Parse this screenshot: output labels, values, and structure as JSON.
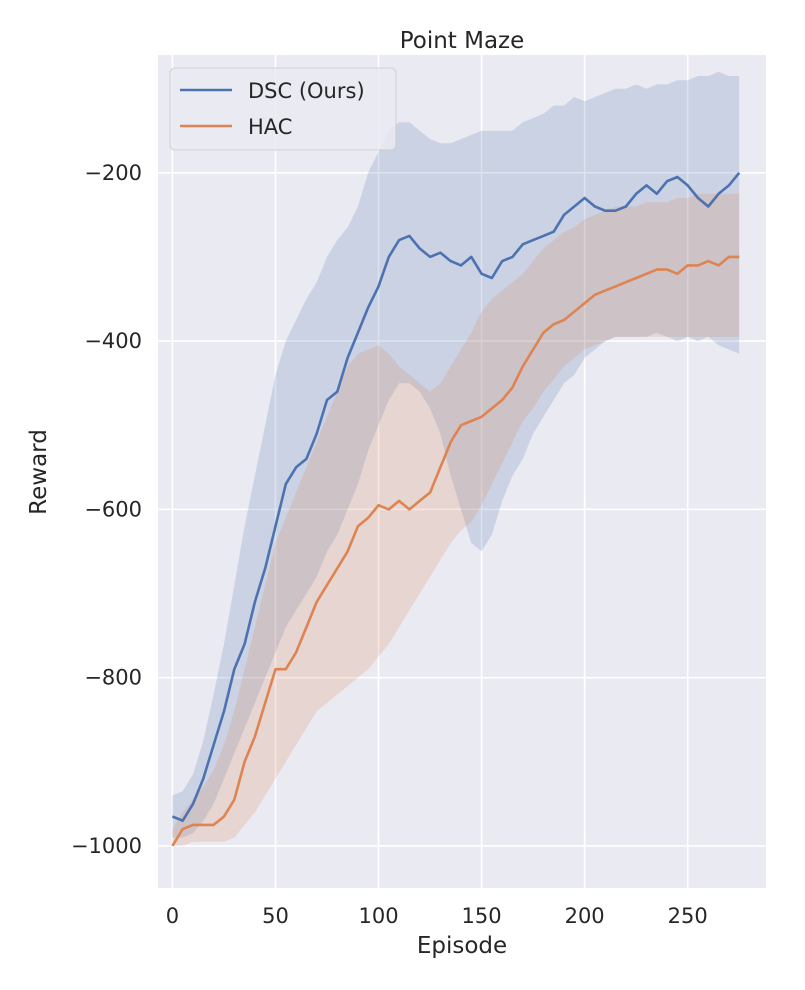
{
  "chart_data": {
    "type": "line",
    "title": "Point Maze",
    "xlabel": "Episode",
    "ylabel": "Reward",
    "xlim": [
      -7,
      288
    ],
    "ylim": [
      -1050,
      -60
    ],
    "xticks": [
      0,
      50,
      100,
      150,
      200,
      250
    ],
    "xtick_labels": [
      "0",
      "50",
      "100",
      "150",
      "200",
      "250"
    ],
    "yticks": [
      -1000,
      -800,
      -600,
      -400,
      -200
    ],
    "ytick_labels": [
      "−1000",
      "−800",
      "−600",
      "−400",
      "−200"
    ],
    "grid": true,
    "background": "#eaeaf2",
    "legend_position": "top-left",
    "band": "shaded region = mean ± spread",
    "series": [
      {
        "name": "DSC (Ours)",
        "color": "#4c72b0",
        "x": [
          0,
          5,
          10,
          15,
          20,
          25,
          30,
          35,
          40,
          45,
          50,
          55,
          60,
          65,
          70,
          75,
          80,
          85,
          90,
          95,
          100,
          105,
          110,
          115,
          120,
          125,
          130,
          135,
          140,
          145,
          150,
          155,
          160,
          165,
          170,
          175,
          180,
          185,
          190,
          195,
          200,
          205,
          210,
          215,
          220,
          225,
          230,
          235,
          240,
          245,
          250,
          255,
          260,
          265,
          270,
          275
        ],
        "mean": [
          -965,
          -970,
          -950,
          -920,
          -880,
          -840,
          -790,
          -760,
          -710,
          -670,
          -620,
          -570,
          -550,
          -540,
          -510,
          -470,
          -460,
          -420,
          -390,
          -360,
          -335,
          -300,
          -280,
          -275,
          -290,
          -300,
          -295,
          -305,
          -310,
          -300,
          -320,
          -325,
          -305,
          -300,
          -285,
          -280,
          -275,
          -270,
          -250,
          -240,
          -230,
          -240,
          -245,
          -245,
          -240,
          -225,
          -215,
          -225,
          -210,
          -205,
          -215,
          -230,
          -240,
          -225,
          -215,
          -200
        ],
        "upper": [
          -940,
          -935,
          -915,
          -875,
          -820,
          -760,
          -690,
          -620,
          -560,
          -500,
          -440,
          -400,
          -375,
          -350,
          -330,
          -300,
          -280,
          -265,
          -240,
          -200,
          -175,
          -150,
          -140,
          -140,
          -150,
          -160,
          -165,
          -165,
          -160,
          -155,
          -150,
          -150,
          -150,
          -150,
          -140,
          -135,
          -130,
          -120,
          -120,
          -110,
          -115,
          -110,
          -105,
          -100,
          -100,
          -95,
          -100,
          -95,
          -95,
          -90,
          -90,
          -85,
          -85,
          -80,
          -85,
          -85
        ],
        "lower": [
          -990,
          -990,
          -985,
          -970,
          -950,
          -920,
          -890,
          -860,
          -830,
          -800,
          -770,
          -740,
          -720,
          -700,
          -680,
          -650,
          -630,
          -600,
          -570,
          -530,
          -500,
          -470,
          -450,
          -450,
          -460,
          -480,
          -510,
          -560,
          -600,
          -640,
          -650,
          -630,
          -590,
          -560,
          -540,
          -510,
          -490,
          -470,
          -450,
          -440,
          -420,
          -410,
          -400,
          -395,
          -395,
          -395,
          -395,
          -390,
          -395,
          -400,
          -395,
          -400,
          -395,
          -405,
          -410,
          -415
        ]
      },
      {
        "name": "HAC",
        "color": "#dd8452",
        "x": [
          0,
          5,
          10,
          15,
          20,
          25,
          30,
          35,
          40,
          45,
          50,
          55,
          60,
          65,
          70,
          75,
          80,
          85,
          90,
          95,
          100,
          105,
          110,
          115,
          120,
          125,
          130,
          135,
          140,
          145,
          150,
          155,
          160,
          165,
          170,
          175,
          180,
          185,
          190,
          195,
          200,
          205,
          210,
          215,
          220,
          225,
          230,
          235,
          240,
          245,
          250,
          255,
          260,
          265,
          270,
          275
        ],
        "mean": [
          -1000,
          -980,
          -975,
          -975,
          -975,
          -965,
          -945,
          -900,
          -870,
          -830,
          -790,
          -790,
          -770,
          -740,
          -710,
          -690,
          -670,
          -650,
          -620,
          -610,
          -595,
          -600,
          -590,
          -600,
          -590,
          -580,
          -550,
          -520,
          -500,
          -495,
          -490,
          -480,
          -470,
          -455,
          -430,
          -410,
          -390,
          -380,
          -375,
          -365,
          -355,
          -345,
          -340,
          -335,
          -330,
          -325,
          -320,
          -315,
          -315,
          -320,
          -310,
          -310,
          -305,
          -310,
          -300,
          -300
        ],
        "upper": [
          -980,
          -960,
          -945,
          -930,
          -910,
          -880,
          -840,
          -790,
          -740,
          -690,
          -640,
          -610,
          -580,
          -550,
          -520,
          -490,
          -460,
          -430,
          -415,
          -410,
          -405,
          -415,
          -430,
          -440,
          -450,
          -460,
          -450,
          -430,
          -410,
          -390,
          -365,
          -350,
          -340,
          -330,
          -320,
          -305,
          -290,
          -280,
          -270,
          -265,
          -255,
          -250,
          -245,
          -240,
          -240,
          -240,
          -235,
          -235,
          -235,
          -230,
          -230,
          -225,
          -225,
          -225,
          -225,
          -225
        ],
        "lower": [
          -1000,
          -1000,
          -995,
          -995,
          -995,
          -995,
          -990,
          -975,
          -960,
          -940,
          -920,
          -900,
          -880,
          -860,
          -840,
          -830,
          -820,
          -810,
          -800,
          -790,
          -775,
          -760,
          -740,
          -720,
          -700,
          -680,
          -660,
          -640,
          -625,
          -615,
          -595,
          -570,
          -545,
          -520,
          -495,
          -480,
          -460,
          -445,
          -430,
          -420,
          -410,
          -405,
          -400,
          -395,
          -395,
          -395,
          -395,
          -395,
          -395,
          -395,
          -395,
          -395,
          -395,
          -395,
          -395,
          -395
        ]
      }
    ]
  }
}
